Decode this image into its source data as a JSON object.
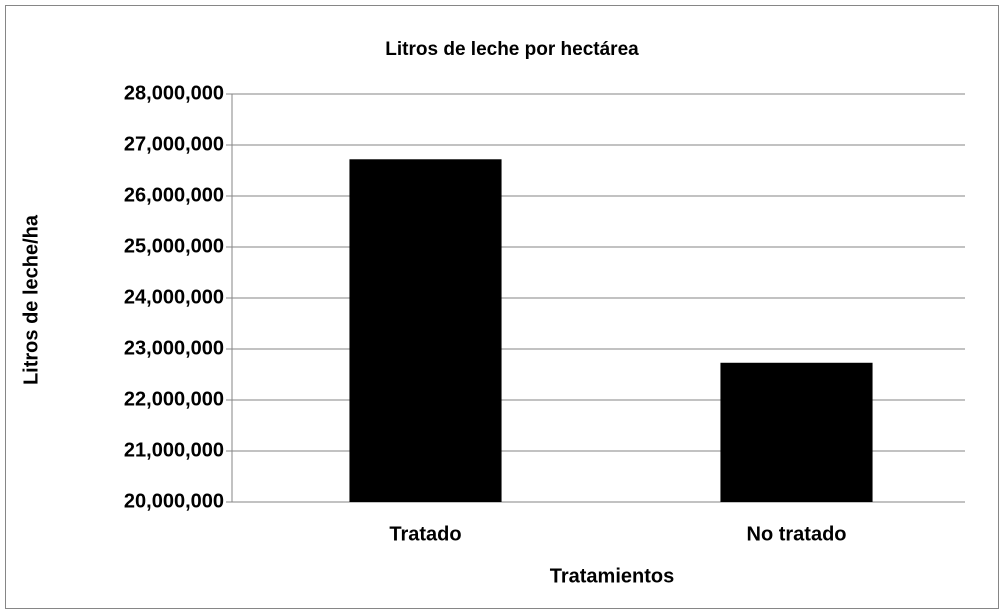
{
  "chart_data": {
    "type": "bar",
    "title": "Litros de leche por hectárea",
    "x_label": "Tratamientos",
    "y_label": "Litros de leche/ha",
    "categories": [
      "Tratado",
      "No tratado"
    ],
    "values": [
      26720000,
      22730000
    ],
    "color": "#000000",
    "ylim": [
      20000000,
      28000000
    ],
    "yticks": [
      {
        "value": 20000000,
        "label": "20,000,000"
      },
      {
        "value": 21000000,
        "label": "21,000,000"
      },
      {
        "value": 22000000,
        "label": "22,000,000"
      },
      {
        "value": 23000000,
        "label": "23,000,000"
      },
      {
        "value": 24000000,
        "label": "24,000,000"
      },
      {
        "value": 25000000,
        "label": "25,000,000"
      },
      {
        "value": 26000000,
        "label": "26,000,000"
      },
      {
        "value": 27000000,
        "label": "27,000,000"
      },
      {
        "value": 28000000,
        "label": "28,000,000"
      }
    ],
    "grid": true
  }
}
